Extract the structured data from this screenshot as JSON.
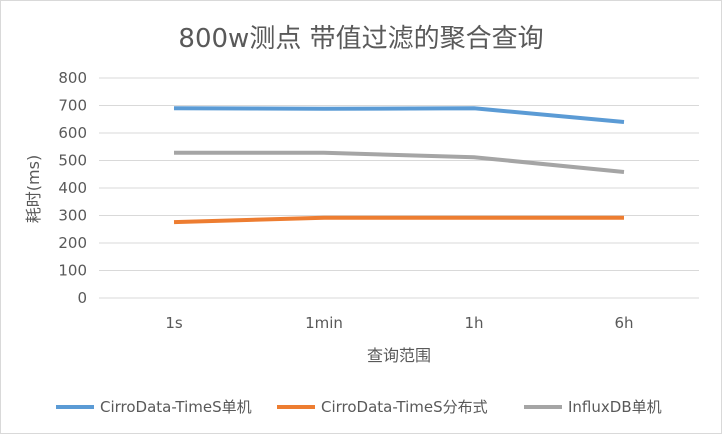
{
  "chart_data": {
    "type": "line",
    "title": "800w测点 带值过滤的聚合查询",
    "xlabel": "查询范围",
    "ylabel": "耗时(ms)",
    "categories": [
      "1s",
      "1min",
      "1h",
      "6h"
    ],
    "ylim": [
      0,
      800
    ],
    "yticks": [
      0,
      100,
      200,
      300,
      400,
      500,
      600,
      700,
      800
    ],
    "grid": true,
    "legend": "bottom",
    "series": [
      {
        "name": "CirroData-TimeS单机",
        "values": [
          690,
          688,
          690,
          640
        ],
        "color": "#5b9bd5"
      },
      {
        "name": "CirroData-TimeS分布式",
        "values": [
          276,
          292,
          292,
          292
        ],
        "color": "#ed7d31"
      },
      {
        "name": "InfluxDB单机",
        "values": [
          528,
          528,
          512,
          458
        ],
        "color": "#a5a5a5"
      }
    ]
  }
}
